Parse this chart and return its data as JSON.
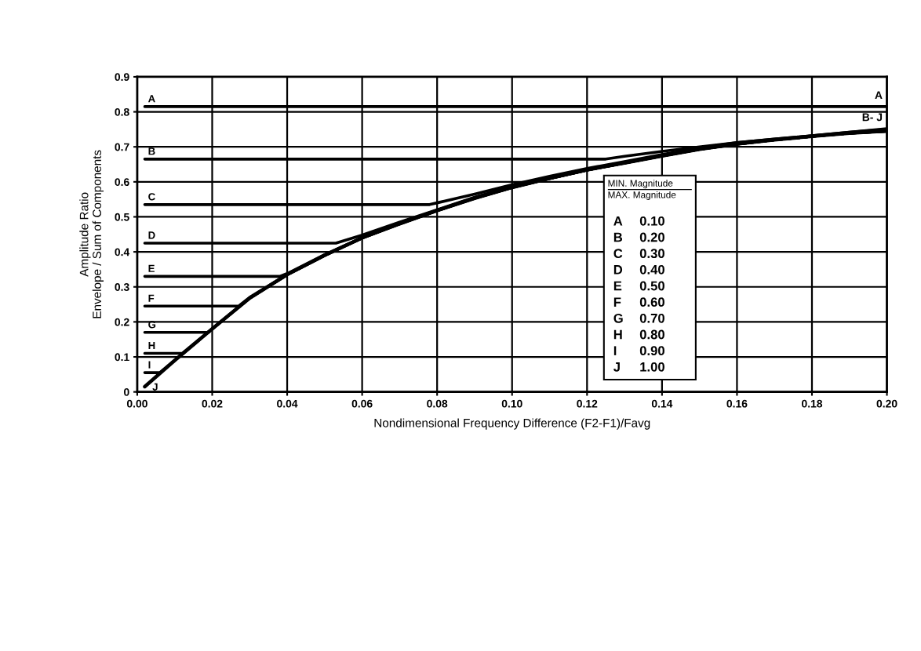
{
  "chart_data": {
    "type": "line",
    "xlabel": "Nondimensional Frequency Difference (F2-F1)/Favg",
    "ylabel": "Amplitude Ratio\nEnvelope / Sum of Components",
    "xlim": [
      0,
      0.2
    ],
    "ylim": [
      0,
      0.9
    ],
    "xticks": [
      {
        "value": 0,
        "label": "0.00"
      },
      {
        "value": 0.02,
        "label": "0.02"
      },
      {
        "value": 0.04,
        "label": "0.04"
      },
      {
        "value": 0.06,
        "label": "0.06"
      },
      {
        "value": 0.08,
        "label": "0.08"
      },
      {
        "value": 0.1,
        "label": "0.10"
      },
      {
        "value": 0.12,
        "label": "0.12"
      },
      {
        "value": 0.14,
        "label": "0.14"
      },
      {
        "value": 0.16,
        "label": "0.16"
      },
      {
        "value": 0.18,
        "label": "0.18"
      },
      {
        "value": 0.2,
        "label": "0.20"
      }
    ],
    "yticks": [
      0,
      0.1,
      0.2,
      0.3,
      0.4,
      0.5,
      0.6,
      0.7,
      0.8,
      0.9
    ],
    "grid": true,
    "legend": "left",
    "marker": "none",
    "line_style": "solid",
    "series": [
      {
        "name": "A",
        "color": "#000000",
        "x": [
          0.002,
          0.2
        ],
        "values": [
          0.815,
          0.815
        ]
      },
      {
        "name": "B",
        "color": "#000000",
        "x": [
          0.002,
          0.125,
          0.13,
          0.14,
          0.15,
          0.16,
          0.17,
          0.18,
          0.19,
          0.2
        ],
        "values": [
          0.665,
          0.665,
          0.673,
          0.687,
          0.7,
          0.712,
          0.722,
          0.732,
          0.742,
          0.752
        ]
      },
      {
        "name": "C",
        "color": "#000000",
        "x": [
          0.002,
          0.078,
          0.08,
          0.09,
          0.1,
          0.11,
          0.12,
          0.13,
          0.14,
          0.15,
          0.16,
          0.17,
          0.18,
          0.19,
          0.2
        ],
        "values": [
          0.535,
          0.535,
          0.54,
          0.565,
          0.592,
          0.616,
          0.638,
          0.658,
          0.678,
          0.697,
          0.712,
          0.722,
          0.732,
          0.742,
          0.75
        ]
      },
      {
        "name": "D",
        "color": "#000000",
        "x": [
          0.002,
          0.053,
          0.06,
          0.07,
          0.08,
          0.09,
          0.1,
          0.11,
          0.12,
          0.13,
          0.14,
          0.15,
          0.16,
          0.17,
          0.18,
          0.19,
          0.2
        ],
        "values": [
          0.425,
          0.425,
          0.448,
          0.485,
          0.52,
          0.556,
          0.587,
          0.612,
          0.636,
          0.656,
          0.676,
          0.695,
          0.71,
          0.72,
          0.73,
          0.74,
          0.748
        ]
      },
      {
        "name": "E",
        "color": "#000000",
        "x": [
          0.002,
          0.038,
          0.04,
          0.05,
          0.06,
          0.07,
          0.08,
          0.09,
          0.1,
          0.11,
          0.12,
          0.13,
          0.14,
          0.15,
          0.16,
          0.17,
          0.18,
          0.19,
          0.2
        ],
        "values": [
          0.33,
          0.33,
          0.338,
          0.392,
          0.441,
          0.482,
          0.519,
          0.555,
          0.586,
          0.611,
          0.635,
          0.655,
          0.675,
          0.694,
          0.709,
          0.72,
          0.73,
          0.739,
          0.746
        ]
      },
      {
        "name": "F",
        "color": "#000000",
        "x": [
          0.002,
          0.027,
          0.03,
          0.04,
          0.05,
          0.06,
          0.07,
          0.08,
          0.09,
          0.1,
          0.11,
          0.12,
          0.13,
          0.14,
          0.15,
          0.16,
          0.17,
          0.18,
          0.19,
          0.2
        ],
        "values": [
          0.245,
          0.245,
          0.27,
          0.336,
          0.391,
          0.44,
          0.481,
          0.518,
          0.554,
          0.585,
          0.61,
          0.634,
          0.654,
          0.674,
          0.693,
          0.708,
          0.72,
          0.73,
          0.739,
          0.745
        ]
      },
      {
        "name": "G",
        "color": "#000000",
        "x": [
          0.002,
          0.019,
          0.02,
          0.03,
          0.04,
          0.05,
          0.06,
          0.07,
          0.08,
          0.09,
          0.1,
          0.11,
          0.12,
          0.13,
          0.14,
          0.15,
          0.16,
          0.17,
          0.18,
          0.19,
          0.2
        ],
        "values": [
          0.17,
          0.17,
          0.18,
          0.268,
          0.335,
          0.39,
          0.44,
          0.48,
          0.518,
          0.553,
          0.584,
          0.61,
          0.634,
          0.654,
          0.674,
          0.693,
          0.708,
          0.72,
          0.73,
          0.739,
          0.745
        ]
      },
      {
        "name": "H",
        "color": "#000000",
        "x": [
          0.002,
          0.012,
          0.02,
          0.03,
          0.04,
          0.05,
          0.06,
          0.07,
          0.08,
          0.09,
          0.1,
          0.11,
          0.12,
          0.13,
          0.14,
          0.15,
          0.16,
          0.17,
          0.18,
          0.19,
          0.2
        ],
        "values": [
          0.11,
          0.11,
          0.18,
          0.268,
          0.335,
          0.39,
          0.44,
          0.48,
          0.518,
          0.553,
          0.584,
          0.61,
          0.634,
          0.654,
          0.674,
          0.693,
          0.708,
          0.72,
          0.73,
          0.739,
          0.745
        ]
      },
      {
        "name": "I",
        "color": "#000000",
        "x": [
          0.002,
          0.006,
          0.01,
          0.02,
          0.03,
          0.04,
          0.05,
          0.06,
          0.07,
          0.08,
          0.09,
          0.1,
          0.11,
          0.12,
          0.13,
          0.14,
          0.15,
          0.16,
          0.17,
          0.18,
          0.19,
          0.2
        ],
        "values": [
          0.055,
          0.055,
          0.09,
          0.18,
          0.268,
          0.335,
          0.39,
          0.44,
          0.48,
          0.518,
          0.553,
          0.584,
          0.61,
          0.634,
          0.654,
          0.674,
          0.693,
          0.708,
          0.72,
          0.73,
          0.739,
          0.745
        ]
      },
      {
        "name": "J",
        "color": "#000000",
        "x": [
          0.002,
          0.01,
          0.02,
          0.03,
          0.04,
          0.05,
          0.06,
          0.07,
          0.08,
          0.09,
          0.1,
          0.11,
          0.12,
          0.13,
          0.14,
          0.15,
          0.16,
          0.17,
          0.18,
          0.19,
          0.2
        ],
        "values": [
          0.015,
          0.09,
          0.18,
          0.268,
          0.335,
          0.39,
          0.44,
          0.48,
          0.518,
          0.553,
          0.584,
          0.61,
          0.634,
          0.654,
          0.674,
          0.693,
          0.708,
          0.72,
          0.73,
          0.739,
          0.745
        ]
      }
    ],
    "annotations": [
      {
        "text": "A",
        "x": 0.2,
        "y": 0.815
      },
      {
        "text": "B- J",
        "x": 0.2,
        "y": 0.752
      },
      "MIN. Magnitude",
      "MAX. Magnitude",
      "A",
      "0.10",
      "B",
      "0.20",
      "C",
      "0.30",
      "D",
      "0.40",
      "E",
      "0.50",
      "F",
      "0.60",
      "G",
      "0.70",
      "H",
      "0.80",
      "I",
      "0.90",
      "J",
      "1.00"
    ]
  }
}
